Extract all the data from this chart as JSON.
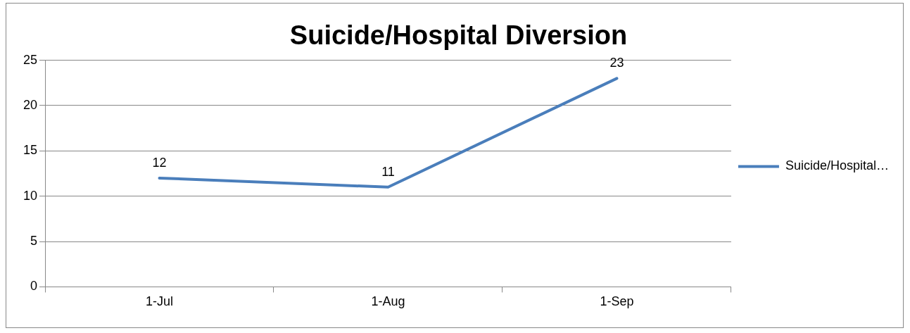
{
  "chart_data": {
    "type": "line",
    "title": "Suicide/Hospital Diversion",
    "categories": [
      "1-Jul",
      "1-Aug",
      "1-Sep"
    ],
    "series": [
      {
        "name": "Suicide/Hospital…",
        "color": "#4a7ebb",
        "values": [
          12,
          11,
          23
        ]
      }
    ],
    "ylim": [
      0,
      25
    ],
    "yticks": [
      0,
      5,
      10,
      15,
      20,
      25
    ],
    "grid": "y",
    "legend": "right",
    "data_labels": true,
    "marker": "none",
    "line_style": "solid"
  }
}
